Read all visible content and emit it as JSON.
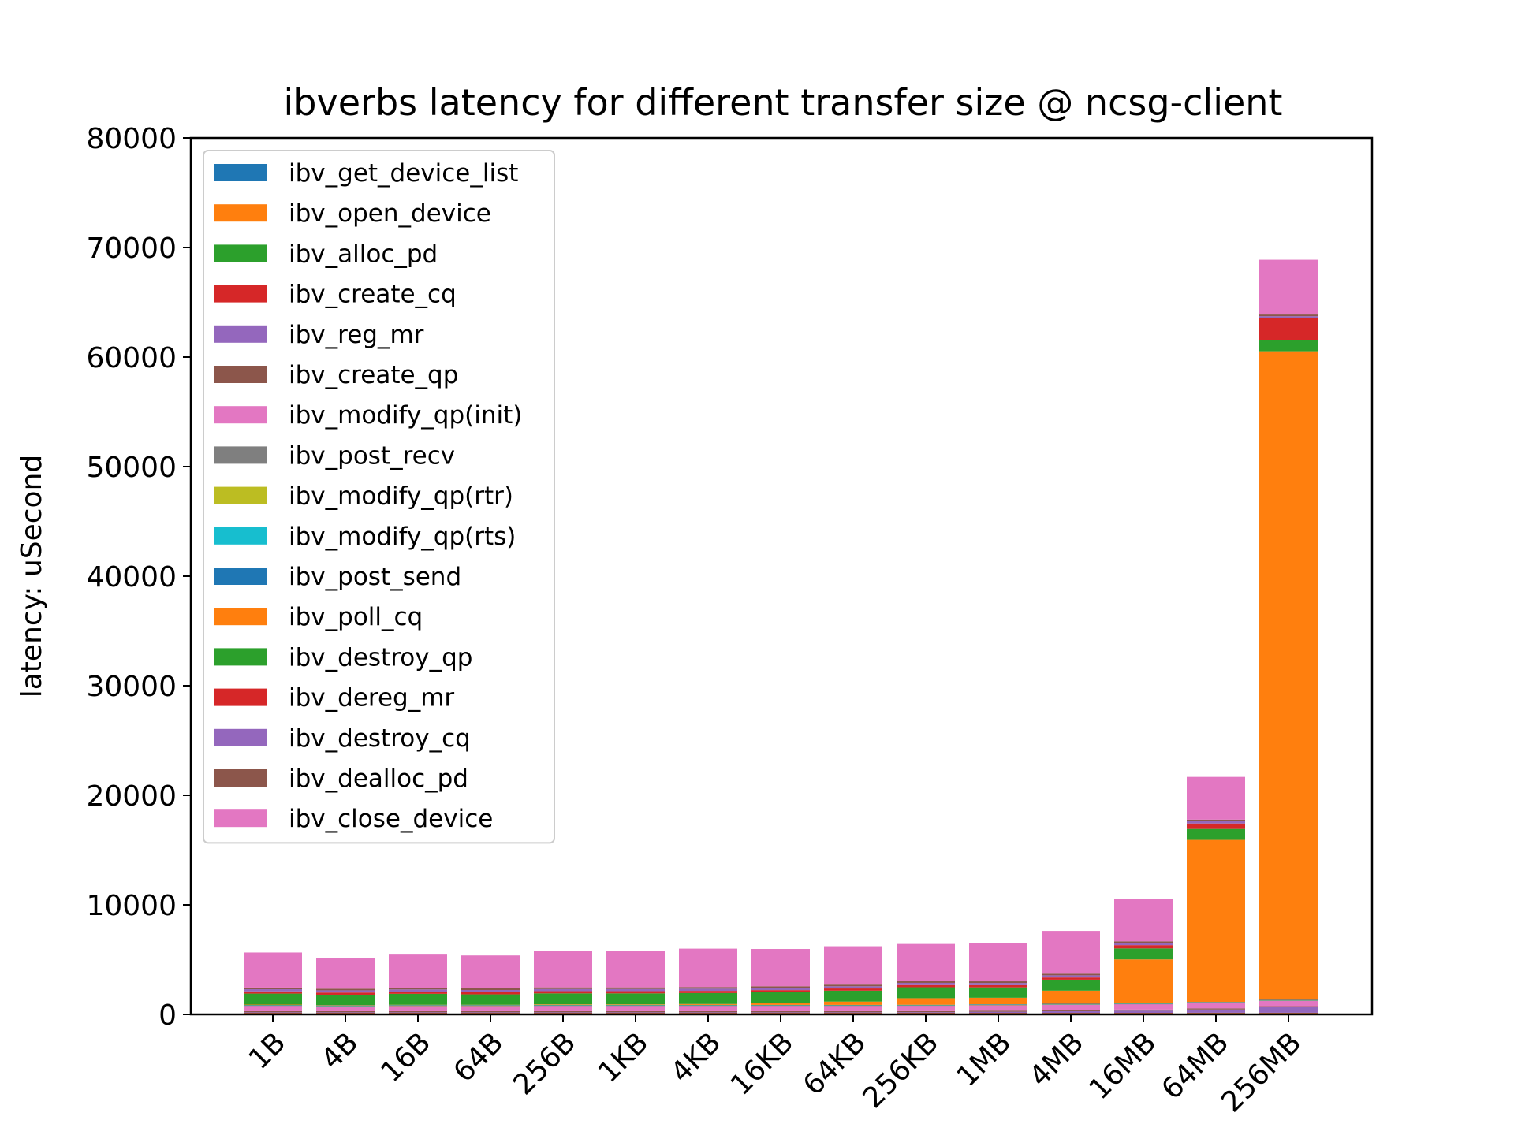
{
  "chart_data": {
    "type": "bar",
    "stacked": true,
    "title": "ibverbs latency for different transfer size @ ncsg-client",
    "xlabel": "",
    "ylabel": "latency: uSecond",
    "ylim": [
      0,
      80000
    ],
    "yticks": [
      0,
      10000,
      20000,
      30000,
      40000,
      50000,
      60000,
      70000,
      80000
    ],
    "grid": false,
    "legend_position": "top-left",
    "categories": [
      "1B",
      "4B",
      "16B",
      "64B",
      "256B",
      "1KB",
      "4KB",
      "16KB",
      "64KB",
      "256KB",
      "1MB",
      "4MB",
      "16MB",
      "64MB",
      "256MB"
    ],
    "series": [
      {
        "name": "ibv_get_device_list",
        "color": "#1f77b4",
        "values": [
          30,
          30,
          30,
          30,
          30,
          30,
          30,
          30,
          30,
          30,
          30,
          30,
          30,
          30,
          30
        ]
      },
      {
        "name": "ibv_open_device",
        "color": "#ff7f0e",
        "values": [
          70,
          70,
          70,
          70,
          70,
          70,
          70,
          70,
          70,
          70,
          70,
          70,
          70,
          70,
          70
        ]
      },
      {
        "name": "ibv_alloc_pd",
        "color": "#2ca02c",
        "values": [
          20,
          20,
          20,
          20,
          20,
          20,
          20,
          20,
          20,
          20,
          20,
          20,
          20,
          20,
          20
        ]
      },
      {
        "name": "ibv_create_cq",
        "color": "#d62728",
        "values": [
          20,
          20,
          20,
          20,
          20,
          20,
          20,
          20,
          20,
          20,
          20,
          20,
          20,
          30,
          30
        ]
      },
      {
        "name": "ibv_reg_mr",
        "color": "#9467bd",
        "values": [
          50,
          50,
          50,
          50,
          50,
          50,
          50,
          50,
          50,
          60,
          100,
          150,
          200,
          300,
          500
        ]
      },
      {
        "name": "ibv_create_qp",
        "color": "#8c564b",
        "values": [
          100,
          100,
          100,
          100,
          100,
          100,
          100,
          100,
          100,
          100,
          100,
          100,
          100,
          100,
          100
        ]
      },
      {
        "name": "ibv_modify_qp(init)",
        "color": "#e377c2",
        "values": [
          500,
          450,
          480,
          480,
          500,
          500,
          500,
          500,
          500,
          500,
          500,
          500,
          500,
          500,
          500
        ]
      },
      {
        "name": "ibv_post_recv",
        "color": "#7f7f7f",
        "values": [
          20,
          20,
          20,
          20,
          20,
          20,
          20,
          20,
          20,
          20,
          20,
          20,
          20,
          20,
          20
        ]
      },
      {
        "name": "ibv_modify_qp(rtr)",
        "color": "#bcbd22",
        "values": [
          20,
          20,
          20,
          20,
          20,
          20,
          20,
          20,
          20,
          20,
          20,
          20,
          20,
          20,
          20
        ]
      },
      {
        "name": "ibv_modify_qp(rts)",
        "color": "#17becf",
        "values": [
          20,
          20,
          20,
          20,
          20,
          20,
          20,
          20,
          20,
          20,
          20,
          20,
          20,
          20,
          20
        ]
      },
      {
        "name": "ibv_post_send",
        "color": "#1f77b4",
        "values": [
          20,
          20,
          20,
          20,
          20,
          20,
          20,
          20,
          20,
          20,
          20,
          20,
          20,
          20,
          20
        ]
      },
      {
        "name": "ibv_poll_cq",
        "color": "#ff7f0e",
        "values": [
          30,
          30,
          30,
          30,
          50,
          50,
          80,
          150,
          300,
          600,
          600,
          1200,
          4000,
          14800,
          59200
        ]
      },
      {
        "name": "ibv_destroy_qp",
        "color": "#2ca02c",
        "values": [
          1000,
          950,
          1000,
          950,
          1000,
          1000,
          1000,
          1000,
          1000,
          1000,
          950,
          1000,
          1000,
          1000,
          1000
        ]
      },
      {
        "name": "ibv_dereg_mr",
        "color": "#d62728",
        "values": [
          200,
          200,
          200,
          200,
          200,
          200,
          200,
          200,
          200,
          200,
          200,
          200,
          300,
          500,
          2000
        ]
      },
      {
        "name": "ibv_destroy_cq",
        "color": "#9467bd",
        "values": [
          200,
          200,
          200,
          200,
          200,
          200,
          200,
          200,
          200,
          200,
          200,
          200,
          200,
          200,
          200
        ]
      },
      {
        "name": "ibv_dealloc_pd",
        "color": "#8c564b",
        "values": [
          150,
          150,
          150,
          150,
          150,
          150,
          150,
          150,
          150,
          150,
          150,
          150,
          150,
          150,
          150
        ]
      },
      {
        "name": "ibv_close_device",
        "color": "#e377c2",
        "values": [
          3200,
          2800,
          3100,
          3000,
          3300,
          3300,
          3500,
          3400,
          3500,
          3400,
          3500,
          3900,
          3900,
          3900,
          5000
        ]
      }
    ]
  }
}
